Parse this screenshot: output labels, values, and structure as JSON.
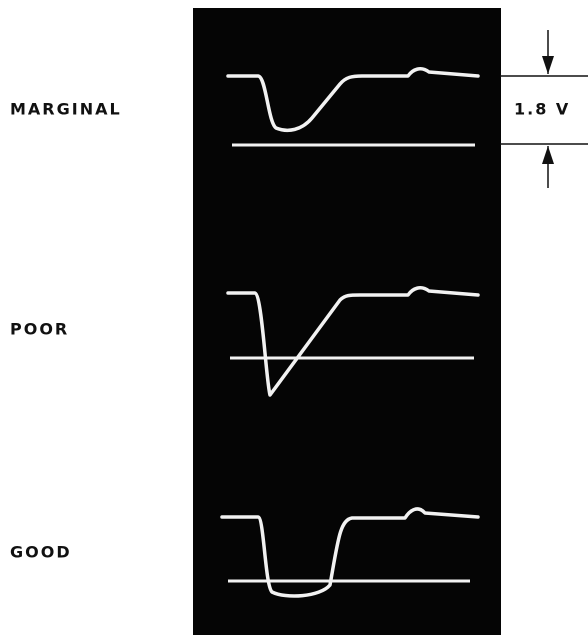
{
  "labels": {
    "marginal": "MARGINAL",
    "poor": "POOR",
    "good": "GOOD"
  },
  "dimension": "1.8 V"
}
